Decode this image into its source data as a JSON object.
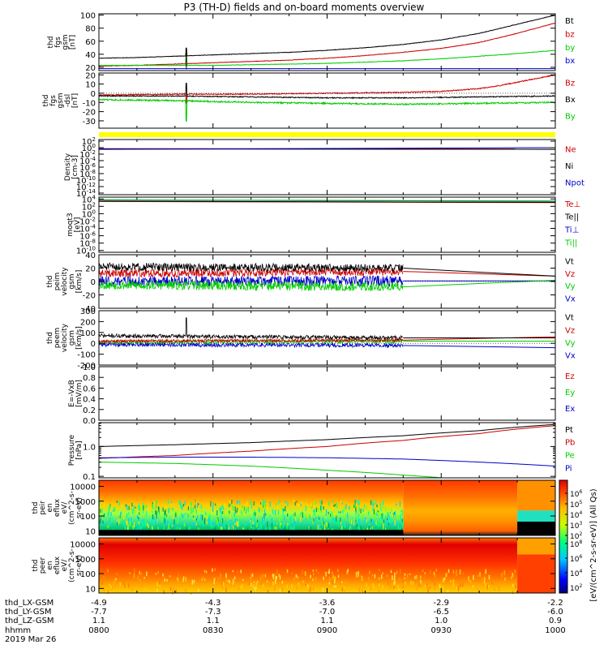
{
  "title": "P3 (TH-D) fields and on-board moments overview",
  "colors": {
    "black": "#000000",
    "red": "#cc0000",
    "green": "#00cc00",
    "blue": "#0000cc",
    "yellow": "#ffff00"
  },
  "chart_data": [
    {
      "type": "line",
      "panel": "fgs-gsm-magnitude",
      "ylabel": [
        "thd",
        "fgs",
        "gsm",
        "[nT]"
      ],
      "y_ticks": [
        "20",
        "40",
        "60",
        "80",
        "100"
      ],
      "ylim": [
        15,
        102
      ],
      "series": [
        {
          "name": "Bt",
          "color": "black",
          "x": [
            0,
            10,
            20,
            30,
            40,
            50,
            60,
            70,
            80,
            90,
            100,
            110,
            120
          ],
          "y": [
            34,
            35,
            37,
            39,
            41,
            43,
            46,
            50,
            55,
            62,
            72,
            86,
            100
          ]
        },
        {
          "name": "bz",
          "color": "red",
          "x": [
            0,
            10,
            20,
            30,
            40,
            50,
            60,
            70,
            80,
            90,
            100,
            110,
            120
          ],
          "y": [
            22,
            23,
            25,
            27,
            29,
            31,
            34,
            38,
            43,
            49,
            58,
            72,
            88
          ]
        },
        {
          "name": "by",
          "color": "green",
          "x": [
            0,
            10,
            20,
            30,
            40,
            50,
            60,
            70,
            80,
            90,
            100,
            110,
            120
          ],
          "y": [
            23,
            23,
            23,
            23,
            24,
            25,
            26,
            28,
            30,
            33,
            37,
            41,
            46
          ]
        },
        {
          "name": "bx",
          "color": "blue",
          "x": [
            0,
            120
          ],
          "y": [
            18,
            18
          ]
        }
      ]
    },
    {
      "type": "line",
      "panel": "fgs-gsm-components",
      "ylabel": [
        "thd",
        "fgs",
        "gsm",
        "-dsl",
        "[nT]"
      ],
      "y_ticks": [
        "-30",
        "-20",
        "-10",
        "0",
        "10",
        "20"
      ],
      "ylim": [
        -38,
        22
      ],
      "series": [
        {
          "name": "Bz",
          "color": "red",
          "x": [
            0,
            20,
            40,
            60,
            80,
            90,
            100,
            105,
            110,
            115,
            120
          ],
          "y": [
            -2,
            -1,
            -1,
            0,
            1,
            2,
            5,
            8,
            12,
            16,
            20
          ]
        },
        {
          "name": "Bx",
          "color": "black",
          "x": [
            0,
            20,
            40,
            60,
            80,
            100,
            120
          ],
          "y": [
            -3,
            -3,
            -4,
            -5,
            -5,
            -4,
            -3
          ]
        },
        {
          "name": "By",
          "color": "green",
          "x": [
            0,
            20,
            40,
            60,
            80,
            100,
            120
          ],
          "y": [
            -7,
            -8,
            -10,
            -11,
            -12,
            -11,
            -10
          ]
        }
      ]
    },
    {
      "type": "line",
      "panel": "density",
      "ylabel": [
        "Density",
        "[cm-3]"
      ],
      "y_ticks": [
        "10^2",
        "10^0",
        "10^-2",
        "10^-4",
        "10^-6",
        "10^-8",
        "10^-10",
        "10^-12",
        "10^-14"
      ],
      "series": [
        {
          "name": "Ne",
          "color": "red",
          "x": [
            0,
            120
          ],
          "y": [
            0.5,
            0.4
          ]
        },
        {
          "name": "Ni",
          "color": "black",
          "x": [
            0,
            120
          ],
          "y": [
            0.4,
            0.3
          ]
        },
        {
          "name": "Npot",
          "color": "blue",
          "x": [
            0,
            120
          ],
          "y": [
            0.3,
            1.0
          ]
        }
      ]
    },
    {
      "type": "line",
      "panel": "temperature",
      "ylabel": [
        "moqt3",
        "[eV]"
      ],
      "y_ticks": [
        "10^4",
        "10^2",
        "10^0",
        "10^-2",
        "10^-4",
        "10^-6",
        "10^-8",
        "10^-10"
      ],
      "series": [
        {
          "name": "Te⊥",
          "color": "red",
          "x": [
            0,
            120
          ],
          "y": [
            2000,
            1000
          ]
        },
        {
          "name": "Te||",
          "color": "black",
          "x": [
            0,
            120
          ],
          "y": [
            2500,
            1200
          ]
        },
        {
          "name": "Ti⊥",
          "color": "blue",
          "x": [
            0,
            120
          ],
          "y": [
            5000,
            2500
          ]
        },
        {
          "name": "Ti||",
          "color": "green",
          "x": [
            0,
            120
          ],
          "y": [
            6000,
            3000
          ]
        }
      ]
    },
    {
      "type": "line",
      "panel": "peim-velocity",
      "ylabel": [
        "thd",
        "peim",
        "velocity",
        "gsm",
        "[km/s]"
      ],
      "y_ticks": [
        "-40",
        "-20",
        "0",
        "20",
        "40"
      ],
      "ylim": [
        -40,
        40
      ],
      "series": [
        {
          "name": "Vt",
          "color": "black",
          "x": [
            0,
            80,
            120
          ],
          "y": [
            22,
            20,
            8
          ]
        },
        {
          "name": "Vz",
          "color": "red",
          "x": [
            0,
            80,
            120
          ],
          "y": [
            12,
            15,
            8
          ]
        },
        {
          "name": "Vy",
          "color": "green",
          "x": [
            0,
            80,
            120
          ],
          "y": [
            -5,
            -8,
            2
          ]
        },
        {
          "name": "Vx",
          "color": "blue",
          "x": [
            0,
            80,
            120
          ],
          "y": [
            0,
            1,
            1
          ]
        }
      ]
    },
    {
      "type": "line",
      "panel": "peem-velocity",
      "ylabel": [
        "thd",
        "peem",
        "velocity",
        "gsm",
        "[km/s]"
      ],
      "y_ticks": [
        "-200",
        "-100",
        "0",
        "100",
        "200",
        "300"
      ],
      "ylim": [
        -200,
        300
      ],
      "series": [
        {
          "name": "Vt",
          "color": "black",
          "x": [
            0,
            80,
            120
          ],
          "y": [
            70,
            50,
            50
          ]
        },
        {
          "name": "Vz",
          "color": "red",
          "x": [
            0,
            80,
            120
          ],
          "y": [
            20,
            30,
            60
          ]
        },
        {
          "name": "Vy",
          "color": "green",
          "x": [
            0,
            80,
            120
          ],
          "y": [
            10,
            20,
            20
          ]
        },
        {
          "name": "Vx",
          "color": "blue",
          "x": [
            0,
            80,
            120
          ],
          "y": [
            -10,
            -20,
            -40
          ]
        }
      ]
    },
    {
      "type": "line",
      "panel": "e-field",
      "ylabel": [
        "E=-VxB",
        "[mV/m]"
      ],
      "y_ticks": [
        "0.0",
        "0.2",
        "0.4",
        "0.6",
        "0.8",
        "1.0"
      ],
      "ylim": [
        0,
        1
      ],
      "series": [
        {
          "name": "Ez",
          "color": "red",
          "x": [],
          "y": []
        },
        {
          "name": "Ey",
          "color": "green",
          "x": [],
          "y": []
        },
        {
          "name": "Ex",
          "color": "blue",
          "x": [],
          "y": []
        }
      ]
    },
    {
      "type": "line",
      "panel": "pressure",
      "ylabel": [
        "Pressure",
        "[nPa]"
      ],
      "y_ticks": [
        "0.1",
        "1.0"
      ],
      "series": [
        {
          "name": "Pt",
          "color": "black",
          "x": [
            0,
            20,
            40,
            60,
            80,
            100,
            120
          ],
          "y": [
            1.0,
            1.15,
            1.35,
            1.7,
            2.3,
            3.4,
            5.5
          ]
        },
        {
          "name": "Pb",
          "color": "red",
          "x": [
            0,
            20,
            40,
            60,
            80,
            100,
            120
          ],
          "y": [
            0.4,
            0.5,
            0.7,
            1.0,
            1.6,
            2.7,
            5.0
          ]
        },
        {
          "name": "Pe",
          "color": "green",
          "x": [
            0,
            20,
            40,
            60,
            80,
            90
          ],
          "y": [
            0.3,
            0.27,
            0.22,
            0.16,
            0.11,
            0.09
          ]
        },
        {
          "name": "Pi",
          "color": "blue",
          "x": [
            0,
            20,
            40,
            60,
            80,
            100,
            120
          ],
          "y": [
            0.42,
            0.44,
            0.44,
            0.42,
            0.38,
            0.3,
            0.22
          ]
        }
      ]
    },
    {
      "type": "heatmap",
      "panel": "peir-en-eflux",
      "ylabel": [
        "thd",
        "peir",
        "en",
        "eflux",
        "eV/",
        "(cm^2-s-",
        "sr-eV)"
      ],
      "y_ticks": [
        "10",
        "100",
        "1000",
        "10000"
      ]
    },
    {
      "type": "heatmap",
      "panel": "peer-en-eflux",
      "ylabel": [
        "thd",
        "peer",
        "en",
        "eflux",
        "eV/",
        "(cm^2-s-",
        "sr-eV)"
      ],
      "y_ticks": [
        "10",
        "100",
        "1000",
        "10000"
      ]
    }
  ],
  "colorbar": {
    "label": "[eV/(cm^2-s-sr-eV)] (All Qs)",
    "ticks_upper": [
      "10^6",
      "10^5",
      "10^4",
      "10^3",
      "10^2"
    ],
    "ticks_lower": [
      "10^8",
      "10^6",
      "10^4",
      "10^2"
    ]
  },
  "x_axis": {
    "rows": [
      {
        "label": "thd_LX-GSM",
        "values": [
          "-4.9",
          "-4.3",
          "-3.6",
          "-2.9",
          "-2.2"
        ]
      },
      {
        "label": "thd_LY-GSM",
        "values": [
          "-7.7",
          "-7.3",
          "-7.0",
          "-6.5",
          "-6.0"
        ]
      },
      {
        "label": "thd_LZ-GSM",
        "values": [
          "1.1",
          "1.1",
          "1.1",
          "1.0",
          "0.9"
        ]
      },
      {
        "label": "hhmm",
        "values": [
          "0800",
          "0830",
          "0900",
          "0930",
          "1000"
        ]
      }
    ],
    "date": "2019 Mar 26"
  }
}
